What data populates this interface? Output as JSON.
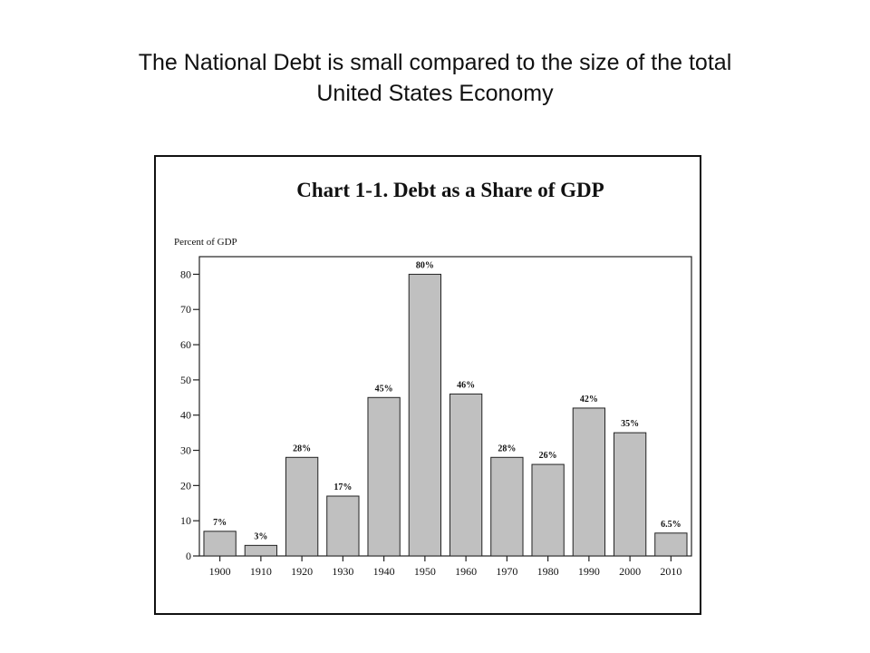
{
  "slide": {
    "title_line1": "The National Debt is small compared to the size of the total",
    "title_line2": "United States Economy"
  },
  "chart_data": {
    "type": "bar",
    "title": "Chart 1-1.  Debt as a Share of GDP",
    "ylabel": "Percent of GDP",
    "xlabel": "",
    "categories": [
      "1900",
      "1910",
      "1920",
      "1930",
      "1940",
      "1950",
      "1960",
      "1970",
      "1980",
      "1990",
      "2000",
      "2010"
    ],
    "values": [
      7,
      3,
      28,
      17,
      45,
      80,
      46,
      28,
      26,
      42,
      35,
      6.5
    ],
    "data_labels": [
      "7%",
      "3%",
      "28%",
      "17%",
      "45%",
      "80%",
      "46%",
      "28%",
      "26%",
      "42%",
      "35%",
      "6.5%"
    ],
    "ylim": [
      0,
      85
    ],
    "yticks": [
      0,
      10,
      20,
      30,
      40,
      50,
      60,
      70,
      80
    ],
    "grid": false,
    "bar_color": "#c0c0c0",
    "bar_edge_color": "#222222"
  }
}
